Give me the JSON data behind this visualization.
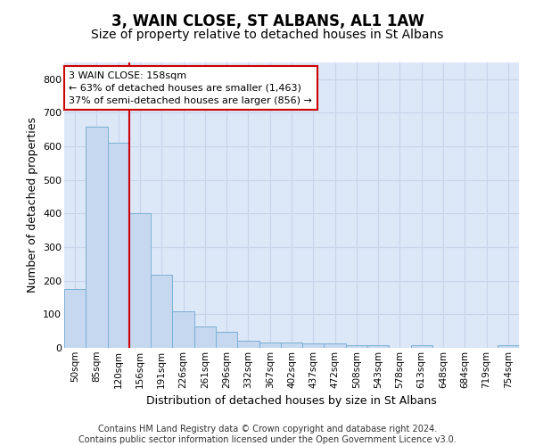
{
  "title": "3, WAIN CLOSE, ST ALBANS, AL1 1AW",
  "subtitle": "Size of property relative to detached houses in St Albans",
  "xlabel": "Distribution of detached houses by size in St Albans",
  "ylabel": "Number of detached properties",
  "categories": [
    "50sqm",
    "85sqm",
    "120sqm",
    "156sqm",
    "191sqm",
    "226sqm",
    "261sqm",
    "296sqm",
    "332sqm",
    "367sqm",
    "402sqm",
    "437sqm",
    "472sqm",
    "508sqm",
    "543sqm",
    "578sqm",
    "613sqm",
    "648sqm",
    "684sqm",
    "719sqm",
    "754sqm"
  ],
  "values": [
    175,
    660,
    610,
    400,
    218,
    110,
    63,
    47,
    22,
    17,
    16,
    14,
    13,
    7,
    9,
    1,
    8,
    1,
    1,
    1,
    7
  ],
  "bar_color": "#c5d8f0",
  "bar_edge_color": "#7bafd4",
  "vline_color": "#cc0000",
  "annotation_text": "3 WAIN CLOSE: 158sqm\n← 63% of detached houses are smaller (1,463)\n37% of semi-detached houses are larger (856) →",
  "annotation_box_color": "#ffffff",
  "annotation_box_edge": "#cc0000",
  "ylim": [
    0,
    850
  ],
  "yticks": [
    0,
    100,
    200,
    300,
    400,
    500,
    600,
    700,
    800
  ],
  "grid_color": "#c8d4e8",
  "bg_color": "#dce8f8",
  "footer": "Contains HM Land Registry data © Crown copyright and database right 2024.\nContains public sector information licensed under the Open Government Licence v3.0.",
  "title_fontsize": 12,
  "subtitle_fontsize": 10,
  "footer_fontsize": 7,
  "vline_bar_index": 3
}
